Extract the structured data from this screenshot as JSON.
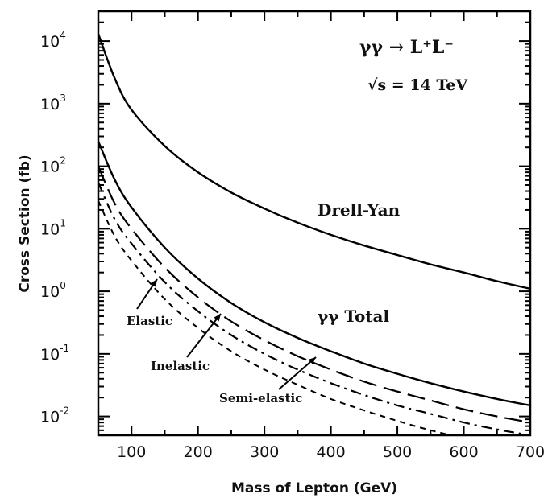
{
  "chart_data": {
    "type": "line",
    "xlabel": "Mass of Lepton (GeV)",
    "ylabel": "Cross Section (fb)",
    "xlim": [
      50,
      700
    ],
    "ylim": [
      0.005,
      30000
    ],
    "yscale": "log",
    "x_ticks": [
      "100",
      "200",
      "300",
      "400",
      "500",
      "600",
      "700"
    ],
    "y_ticks": [
      {
        "base": "10",
        "exp": "4"
      },
      {
        "base": "10",
        "exp": "3"
      },
      {
        "base": "10",
        "exp": "2"
      },
      {
        "base": "10",
        "exp": "1"
      },
      {
        "base": "10",
        "exp": "0"
      },
      {
        "base": "10",
        "exp": "-1"
      },
      {
        "base": "10",
        "exp": "-2"
      }
    ],
    "grid": false,
    "process_label": "γγ → L⁺L⁻",
    "energy_label": "√s = 14 TeV",
    "series": [
      {
        "name": "Drell-Yan",
        "style": "solid",
        "x": [
          50,
          75,
          100,
          150,
          200,
          250,
          300,
          350,
          400,
          450,
          500,
          550,
          600,
          650,
          700
        ],
        "y": [
          13000,
          2500,
          800,
          210,
          80,
          38,
          21,
          12.5,
          8,
          5.4,
          3.8,
          2.7,
          2,
          1.45,
          1.1
        ]
      },
      {
        "name": "γγ Total",
        "style": "solid",
        "x": [
          50,
          75,
          100,
          150,
          200,
          250,
          300,
          350,
          400,
          450,
          500,
          550,
          600,
          650,
          700
        ],
        "y": [
          250,
          60,
          22,
          5,
          1.6,
          0.65,
          0.32,
          0.18,
          0.11,
          0.07,
          0.048,
          0.034,
          0.025,
          0.019,
          0.015
        ]
      },
      {
        "name": "Inelastic",
        "style": "long-dash",
        "x": [
          50,
          75,
          100,
          150,
          200,
          250,
          300,
          350,
          400,
          450,
          500,
          550,
          600,
          650,
          700
        ],
        "y": [
          100,
          25,
          10,
          2.4,
          0.8,
          0.33,
          0.165,
          0.092,
          0.056,
          0.036,
          0.025,
          0.018,
          0.013,
          0.01,
          0.008
        ]
      },
      {
        "name": "Semi-elastic",
        "style": "dash-dot",
        "x": [
          50,
          75,
          100,
          150,
          200,
          250,
          300,
          350,
          400,
          450,
          500,
          550,
          600,
          650,
          700
        ],
        "y": [
          55,
          14,
          5.8,
          1.4,
          0.48,
          0.2,
          0.1,
          0.056,
          0.034,
          0.022,
          0.015,
          0.011,
          0.008,
          0.0062,
          0.005
        ]
      },
      {
        "name": "Elastic",
        "style": "short-dash",
        "x": [
          50,
          75,
          100,
          150,
          200,
          250,
          300,
          350,
          400,
          450,
          500,
          550,
          600,
          650,
          700
        ],
        "y": [
          28,
          7.5,
          3.1,
          0.75,
          0.26,
          0.11,
          0.056,
          0.032,
          0.019,
          0.0125,
          0.0085,
          0.006,
          0.0045,
          0.0035,
          0.0028
        ]
      }
    ]
  }
}
